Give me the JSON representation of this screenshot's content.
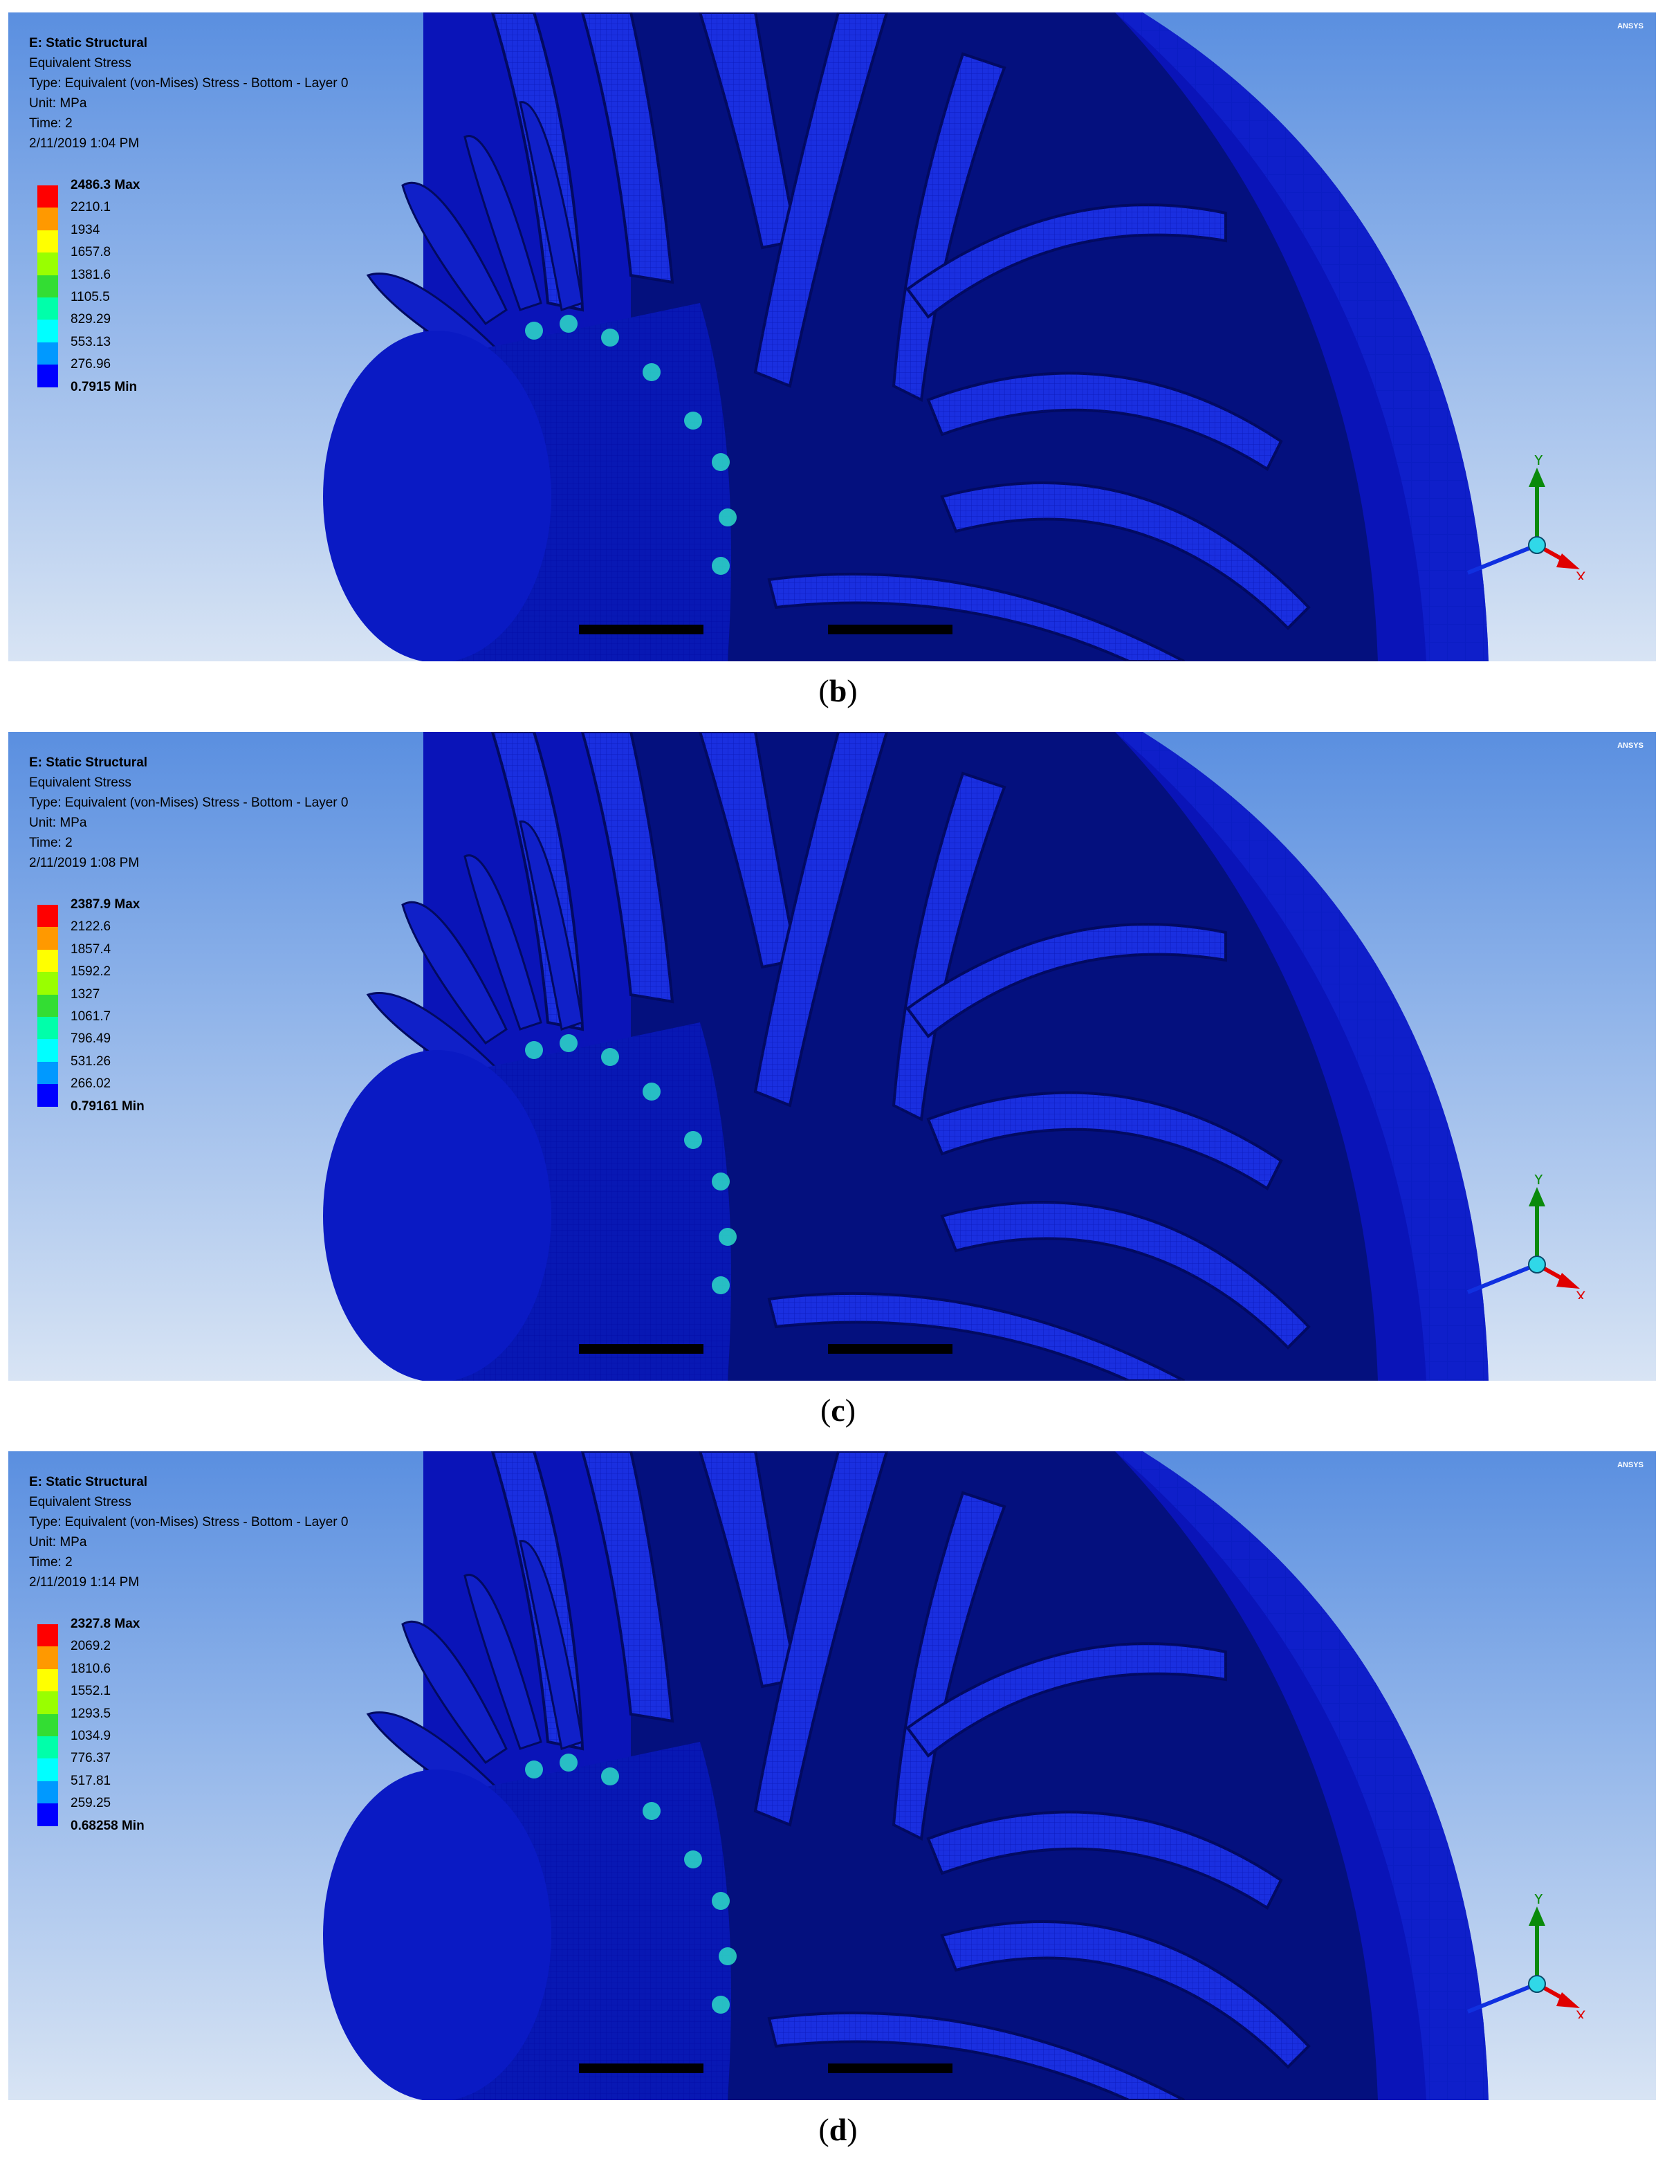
{
  "panels": [
    {
      "caption_letter": "b",
      "title": "E: Static Structural",
      "result": "Equivalent Stress",
      "type": "Type: Equivalent (von-Mises) Stress - Bottom - Layer 0",
      "unit": "Unit: MPa",
      "time": "Time: 2",
      "date": "2/11/2019 1:04 PM",
      "legend": [
        "2486.3 Max",
        "2210.1",
        "1934",
        "1657.8",
        "1381.6",
        "1105.5",
        "829.29",
        "553.13",
        "276.96",
        "0.7915 Min"
      ]
    },
    {
      "caption_letter": "c",
      "title": "E: Static Structural",
      "result": "Equivalent Stress",
      "type": "Type: Equivalent (von-Mises) Stress - Bottom - Layer 0",
      "unit": "Unit: MPa",
      "time": "Time: 2",
      "date": "2/11/2019 1:08 PM",
      "legend": [
        "2387.9 Max",
        "2122.6",
        "1857.4",
        "1592.2",
        "1327",
        "1061.7",
        "796.49",
        "531.26",
        "266.02",
        "0.79161 Min"
      ]
    },
    {
      "caption_letter": "d",
      "title": "E: Static Structural",
      "result": "Equivalent Stress",
      "type": "Type: Equivalent (von-Mises) Stress - Bottom - Layer 0",
      "unit": "Unit: MPa",
      "time": "Time: 2",
      "date": "2/11/2019 1:14 PM",
      "legend": [
        "2327.8 Max",
        "2069.2",
        "1810.6",
        "1552.1",
        "1293.5",
        "1034.9",
        "776.37",
        "517.81",
        "259.25",
        "0.68258 Min"
      ]
    }
  ],
  "logo_text": "ANSYS",
  "axis_labels": {
    "x": "X",
    "y": "Y"
  },
  "legend_colors": [
    "#ff0000",
    "#ff9900",
    "#ffff00",
    "#99ff00",
    "#33dd33",
    "#00ffaa",
    "#00ffff",
    "#0099ff",
    "#0000ff"
  ]
}
